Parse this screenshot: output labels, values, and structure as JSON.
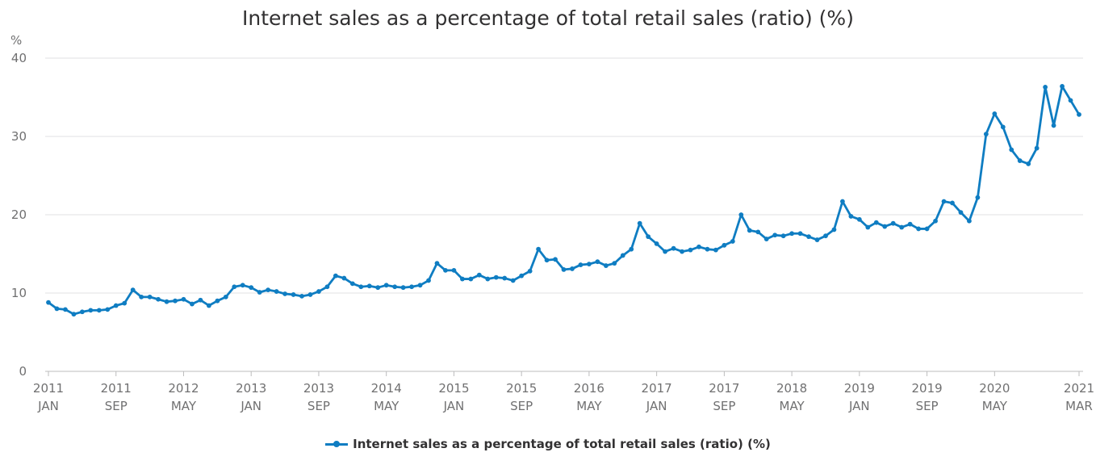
{
  "chart_data": {
    "type": "line",
    "title": "Internet sales as a percentage of total retail sales (ratio) (%)",
    "ylabel": "%",
    "xlabel": "",
    "ylim": [
      0,
      40
    ],
    "yticks": [
      0,
      10,
      20,
      30,
      40
    ],
    "grid": true,
    "legend_position": "bottom",
    "color": "#0f7dc2",
    "x_ticks": [
      {
        "index": 0,
        "year": "2011",
        "month": "JAN"
      },
      {
        "index": 8,
        "year": "2011",
        "month": "SEP"
      },
      {
        "index": 16,
        "year": "2012",
        "month": "MAY"
      },
      {
        "index": 24,
        "year": "2013",
        "month": "JAN"
      },
      {
        "index": 32,
        "year": "2013",
        "month": "SEP"
      },
      {
        "index": 40,
        "year": "2014",
        "month": "MAY"
      },
      {
        "index": 48,
        "year": "2015",
        "month": "JAN"
      },
      {
        "index": 56,
        "year": "2015",
        "month": "SEP"
      },
      {
        "index": 64,
        "year": "2016",
        "month": "MAY"
      },
      {
        "index": 72,
        "year": "2017",
        "month": "JAN"
      },
      {
        "index": 80,
        "year": "2017",
        "month": "SEP"
      },
      {
        "index": 88,
        "year": "2018",
        "month": "MAY"
      },
      {
        "index": 96,
        "year": "2019",
        "month": "JAN"
      },
      {
        "index": 104,
        "year": "2019",
        "month": "SEP"
      },
      {
        "index": 112,
        "year": "2020",
        "month": "MAY"
      },
      {
        "index": 122,
        "year": "2021",
        "month": "MAR"
      }
    ],
    "series": [
      {
        "name": "Internet sales as a percentage of total retail sales (ratio) (%)",
        "x_start": "2011-01",
        "x_end": "2021-03",
        "values": [
          8.8,
          8.0,
          7.9,
          7.3,
          7.6,
          7.8,
          7.8,
          7.9,
          8.4,
          8.7,
          10.4,
          9.5,
          9.5,
          9.2,
          8.9,
          9.0,
          9.2,
          8.6,
          9.1,
          8.4,
          9.0,
          9.5,
          10.8,
          11.0,
          10.7,
          10.1,
          10.4,
          10.2,
          9.9,
          9.8,
          9.6,
          9.8,
          10.2,
          10.8,
          12.2,
          11.9,
          11.2,
          10.8,
          10.9,
          10.7,
          11.0,
          10.8,
          10.7,
          10.8,
          11.0,
          11.6,
          13.8,
          12.9,
          12.9,
          11.8,
          11.8,
          12.3,
          11.8,
          12.0,
          11.9,
          11.6,
          12.2,
          12.8,
          15.6,
          14.2,
          14.3,
          13.0,
          13.1,
          13.6,
          13.7,
          14.0,
          13.5,
          13.8,
          14.8,
          15.6,
          18.9,
          17.2,
          16.3,
          15.3,
          15.7,
          15.3,
          15.5,
          15.9,
          15.6,
          15.5,
          16.1,
          16.6,
          20.0,
          18.0,
          17.8,
          16.9,
          17.4,
          17.3,
          17.6,
          17.6,
          17.2,
          16.8,
          17.3,
          18.1,
          21.7,
          19.8,
          19.4,
          18.4,
          19.0,
          18.5,
          18.9,
          18.4,
          18.8,
          18.2,
          18.2,
          19.2,
          21.7,
          21.5,
          20.3,
          19.2,
          22.2,
          30.3,
          32.9,
          31.2,
          28.3,
          26.9,
          26.5,
          28.5,
          36.3,
          31.4,
          36.4,
          34.6,
          32.8
        ]
      }
    ]
  }
}
